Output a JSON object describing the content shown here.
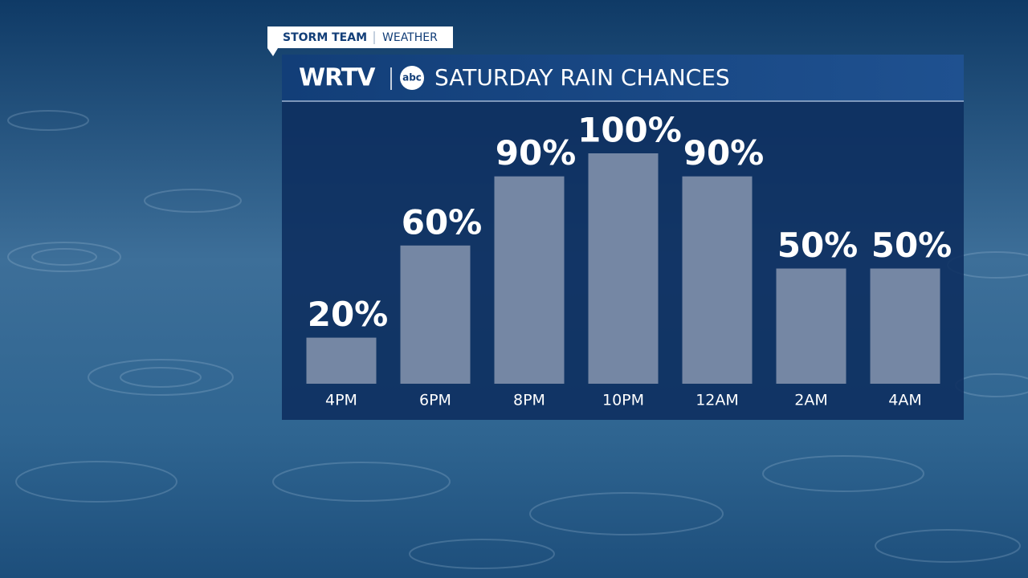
{
  "header": {
    "badge": "STORM TEAM",
    "badge_sub": "WEATHER",
    "station": "WRTV",
    "network": "abc"
  },
  "chart_data": {
    "type": "bar",
    "title": "SATURDAY RAIN CHANCES",
    "categories": [
      "4PM",
      "6PM",
      "8PM",
      "10PM",
      "12AM",
      "2AM",
      "4AM"
    ],
    "values": [
      20,
      60,
      90,
      100,
      90,
      50,
      50
    ],
    "value_labels": [
      "20%",
      "60%",
      "90%",
      "100%",
      "90%",
      "50%",
      "50%"
    ],
    "color": "#8190ab"
  }
}
